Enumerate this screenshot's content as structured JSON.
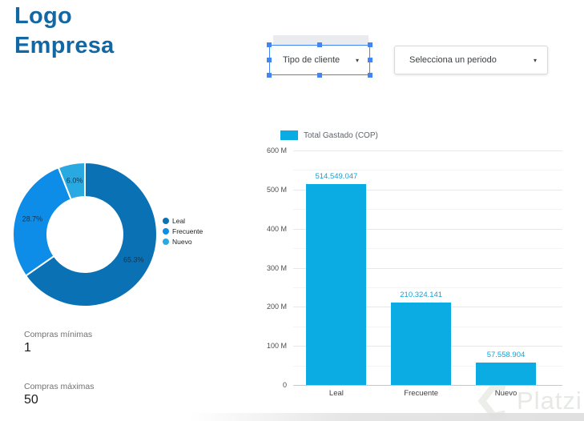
{
  "logo": {
    "line1": "Logo",
    "line2": "Empresa"
  },
  "filters": {
    "tipo_cliente": {
      "label": "Tipo de cliente",
      "caret_icon": "▾"
    },
    "periodo": {
      "label": "Selecciona un periodo",
      "caret_icon": "▾"
    }
  },
  "stats": {
    "min_label": "Compras mínimas",
    "min_value": "1",
    "max_label": "Compras máximas",
    "max_value": "50"
  },
  "watermark": {
    "text": "Platzi"
  },
  "colors": {
    "brand_blue": "#1368a4",
    "selection_blue": "#4285f4",
    "bar_blue": "#0babe3",
    "value_label_blue": "#0aa6de"
  },
  "chart_data": [
    {
      "type": "pie",
      "donut": true,
      "categories": [
        "Leal",
        "Frecuente",
        "Nuevo"
      ],
      "values": [
        65.3,
        28.7,
        6.0
      ],
      "labels": [
        "65.3%",
        "28.7%",
        "6.0%"
      ],
      "colors": [
        "#0a72b4",
        "#0e8de8",
        "#29a9e2"
      ],
      "legend_position": "right",
      "start_angle_deg": 0,
      "direction": "clockwise"
    },
    {
      "type": "bar",
      "categories": [
        "Leal",
        "Frecuente",
        "Nuevo"
      ],
      "series": [
        {
          "name": "Total Gastado (COP)",
          "values": [
            514549047,
            210324141,
            57558904
          ],
          "value_labels": [
            "514.549.047",
            "210.324.141",
            "57.558.904"
          ]
        }
      ],
      "bar_color": "#0babe3",
      "ylim": [
        0,
        600000000
      ],
      "ytick_labels": [
        "600 M",
        "500 M",
        "400 M",
        "300 M",
        "200 M",
        "100 M",
        "0"
      ],
      "grid": true,
      "legend_position": "top"
    }
  ]
}
